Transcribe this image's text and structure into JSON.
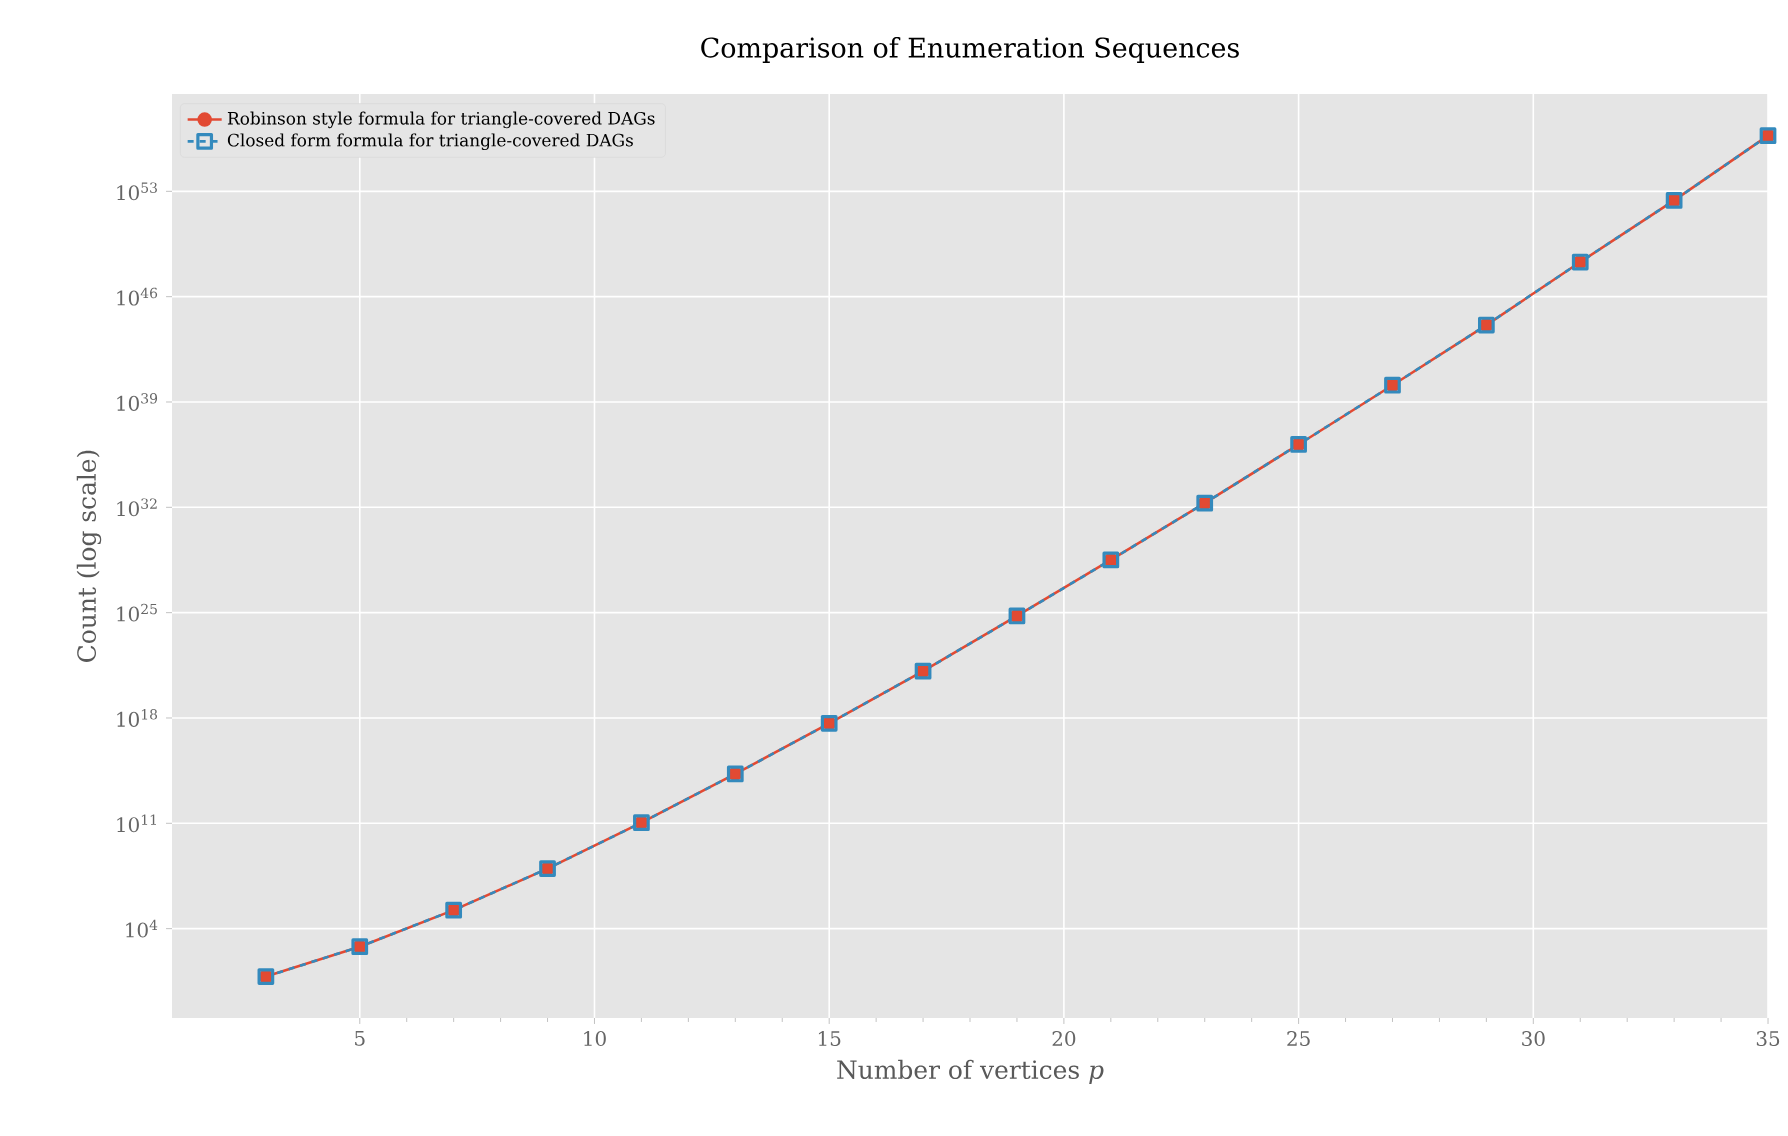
{
  "chart_data": {
    "type": "line",
    "title": "Comparison of Enumeration Sequences",
    "xlabel": "Number of vertices *p*",
    "ylabel": "Count (log scale)",
    "x": [
      3,
      5,
      7,
      9,
      11,
      13,
      15,
      17,
      19,
      21,
      23,
      25,
      27,
      29,
      31,
      33,
      35
    ],
    "series": [
      {
        "name": "Robinson style formula for triangle-covered DAGs",
        "color": "#e24a33",
        "marker": "circle",
        "line_style": "solid",
        "values": [
          6.5,
          630.0,
          170000.0,
          98000000.0,
          110000000000.0,
          190000000000000.0,
          4.4e+17,
          1.3e+21,
          6e+24,
          3.2e+28,
          1.9e+32,
          1.5e+36,
          1.3e+40,
          1.3e+44,
          2e+48,
          2.5e+52,
          5e+56
        ]
      },
      {
        "name": "Closed form formula for triangle-covered DAGs",
        "color": "#348abd",
        "marker": "square",
        "line_style": "dashed",
        "values": [
          6.5,
          630.0,
          170000.0,
          98000000.0,
          110000000000.0,
          190000000000000.0,
          4.4e+17,
          1.3e+21,
          6e+24,
          3.2e+28,
          1.9e+32,
          1.5e+36,
          1.3e+40,
          1.3e+44,
          2e+48,
          2.5e+52,
          5e+56
        ]
      }
    ],
    "log": "y",
    "xlim": [
      1,
      35
    ],
    "ylim": [
      0.0115,
      2.95e+59
    ],
    "xticks": [
      5,
      10,
      15,
      20,
      25,
      30,
      35
    ],
    "yticks": [
      {
        "value": 10000.0,
        "label": "10$^{4}$"
      },
      {
        "value": 100000000000.0,
        "label": "10$^{11}$"
      },
      {
        "value": 1e+18,
        "label": "10$^{18}$"
      },
      {
        "value": 1e+25,
        "label": "10$^{25}$"
      },
      {
        "value": 1e+32,
        "label": "10$^{32}$"
      },
      {
        "value": 1e+39,
        "label": "10$^{39}$"
      },
      {
        "value": 1e+46,
        "label": "10$^{46}$"
      },
      {
        "value": 1e+53,
        "label": "10$^{53}$"
      }
    ],
    "grid": true,
    "legend": "top left"
  }
}
